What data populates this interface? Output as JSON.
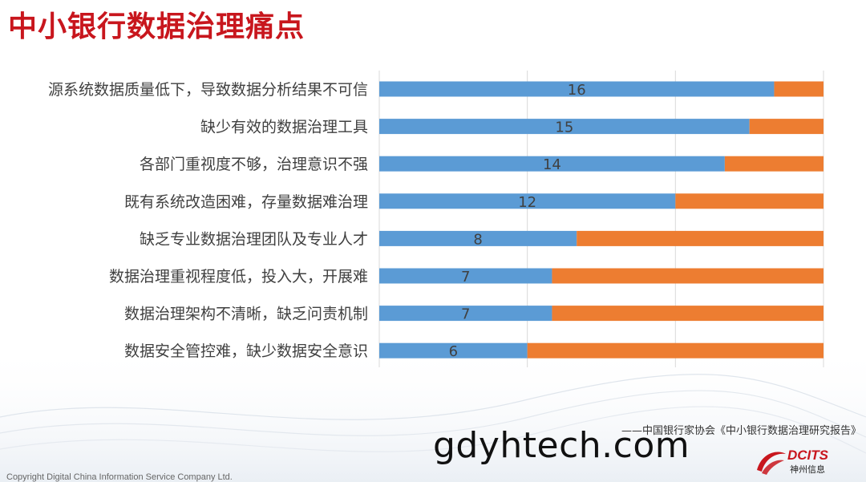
{
  "slide": {
    "title": "中小银行数据治理痛点",
    "source": "——中国银行家协会《中小银行数据治理研究报告》",
    "watermark": "gdyhtech.com",
    "copyright": "Copyright  Digital China Information Service Company Ltd.",
    "logo": {
      "name": "DCITS",
      "sub": "神州信息"
    }
  },
  "chart_data": {
    "type": "bar",
    "orientation": "horizontal",
    "stacked": true,
    "categories": [
      "源系统数据质量低下，导致数据分析结果不可信",
      "缺少有效的数据治理工具",
      "各部门重视度不够，治理意识不强",
      "既有系统改造困难，存量数据难治理",
      "缺乏专业数据治理团队及专业人才",
      "数据治理重视程度低，投入大，开展难",
      "数据治理架构不清晰，缺乏问责机制",
      "数据安全管控难，缺少数据安全意识"
    ],
    "series": [
      {
        "values": [
          16,
          15,
          14,
          12,
          8,
          7,
          7,
          6
        ],
        "color": "#5b9bd5",
        "data_labels": true
      },
      {
        "values": [
          2,
          3,
          4,
          6,
          10,
          11,
          11,
          12
        ],
        "color": "#ed7d31",
        "data_labels": false
      }
    ],
    "xlim": [
      0,
      18
    ],
    "grid": true,
    "legend": "none"
  }
}
